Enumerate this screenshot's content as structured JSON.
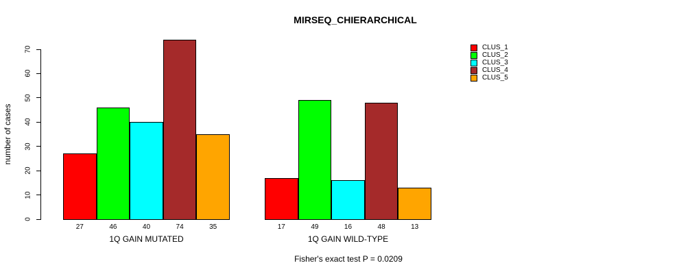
{
  "chart_data": {
    "type": "bar",
    "title": "MIRSEQ_CHIERARCHICAL",
    "ylabel": "number of cases",
    "xlabel": "",
    "ylim": [
      0,
      70
    ],
    "yticks": [
      0,
      10,
      20,
      30,
      40,
      50,
      60,
      70
    ],
    "grid": false,
    "legend_position": "top-right",
    "legend_frame": false,
    "bar_value_labels": true,
    "series": [
      {
        "name": "CLUS_1",
        "color": "#FF0000"
      },
      {
        "name": "CLUS_2",
        "color": "#00FF00"
      },
      {
        "name": "CLUS_3",
        "color": "#00FFFF"
      },
      {
        "name": "CLUS_4",
        "color": "#A52A2A"
      },
      {
        "name": "CLUS_5",
        "color": "#FFA500"
      }
    ],
    "groups": [
      {
        "label": "1Q GAIN MUTATED",
        "values": [
          27,
          46,
          40,
          74,
          35
        ]
      },
      {
        "label": "1Q GAIN WILD-TYPE",
        "values": [
          17,
          49,
          16,
          48,
          13
        ]
      }
    ],
    "annotation": "Fisher's exact test P = 0.0209"
  }
}
